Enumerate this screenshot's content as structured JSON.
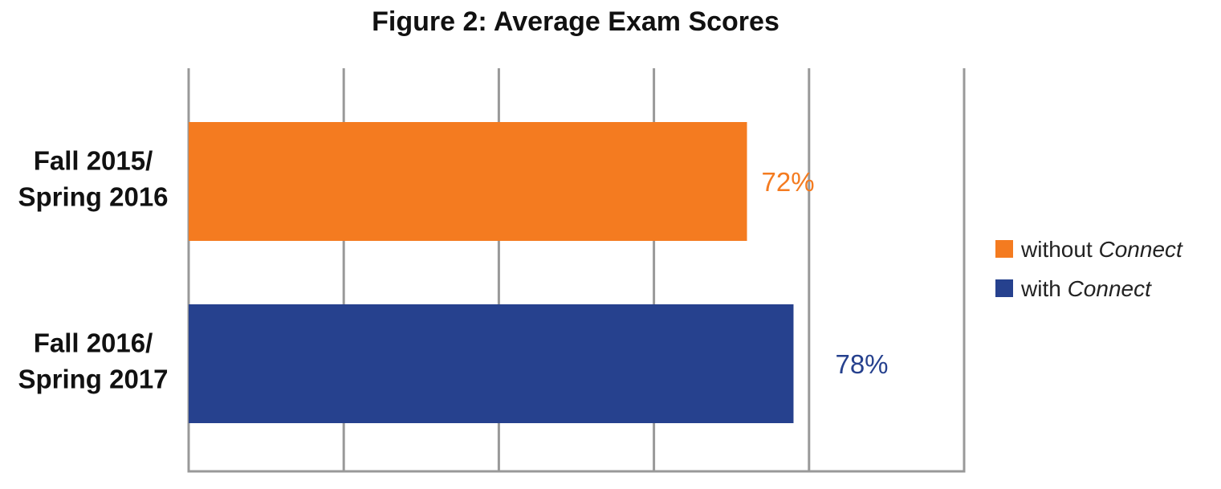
{
  "chart_data": {
    "type": "bar",
    "orientation": "horizontal",
    "title": "Figure 2: Average Exam Scores",
    "xlabel": "",
    "ylabel": "",
    "xlim": [
      0,
      100
    ],
    "grid": true,
    "categories": [
      [
        "Fall 2015/",
        "Spring 2016"
      ],
      [
        "Fall 2016/",
        "Spring 2017"
      ]
    ],
    "series": [
      {
        "name": "without Connect",
        "values": [
          72,
          null
        ],
        "color": "#f47b20"
      },
      {
        "name": "with Connect",
        "values": [
          null,
          78
        ],
        "color": "#26418e"
      }
    ],
    "data_labels": [
      "72%",
      "78%"
    ],
    "legend": {
      "position": "right",
      "entries": [
        {
          "prefix": "without ",
          "emphasis": "Connect",
          "color": "#f47b20"
        },
        {
          "prefix": "with ",
          "emphasis": "Connect",
          "color": "#26418e"
        }
      ]
    },
    "colors": {
      "grid": "#999999"
    }
  }
}
